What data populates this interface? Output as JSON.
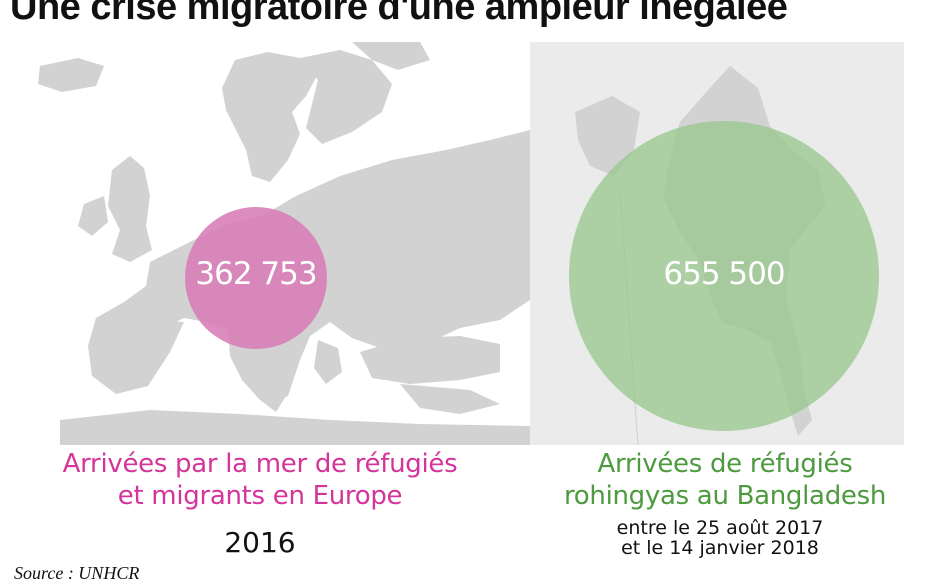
{
  "title": "Une crise migratoire d'une ampleur inégalée",
  "colors": {
    "europe": "#d5359a",
    "bangladesh": "#4d9a3f",
    "bubble_europe": "#d77cb6",
    "bubble_bangladesh": "#98c58c",
    "map": "#d2d2d2",
    "map_bg": "#ebebeb"
  },
  "chart_data": {
    "type": "bubble",
    "items": [
      {
        "value_label": "362 753",
        "value": 362753,
        "caption_line1": "Arrivées par la mer de réfugiés",
        "caption_line2": "et migrants en Europe",
        "period": "2016"
      },
      {
        "value_label": "655 500",
        "value": 655500,
        "caption_line1": "Arrivées de réfugiés",
        "caption_line2": "rohingyas au Bangladesh",
        "period_line1": "entre le 25 août 2017",
        "period_line2": "et le 14 janvier 2018"
      }
    ]
  },
  "source": "Source : UNHCR"
}
